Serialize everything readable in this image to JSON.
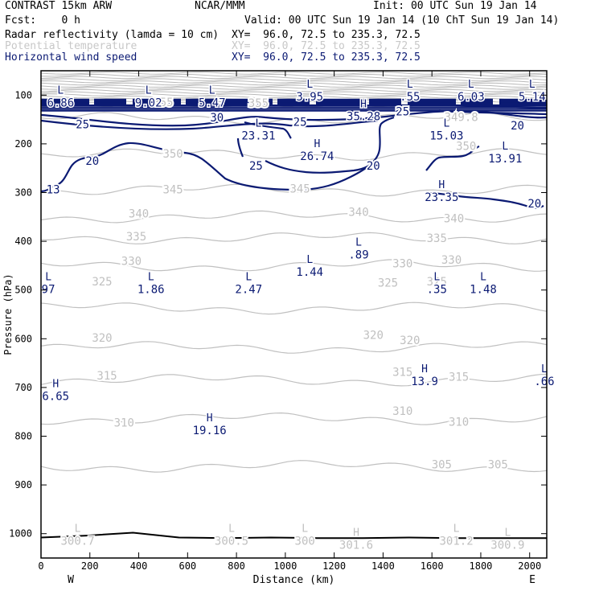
{
  "header": {
    "model": "CONTRAST 15km ARW",
    "org": "NCAR/MMM",
    "init": "Init: 00 UTC Sun 19 Jan 14",
    "fcst": "Fcst:    0 h",
    "valid": "Valid: 00 UTC Sun 19 Jan 14 (10 ChT Sun 19 Jan 14)"
  },
  "fields": [
    {
      "name": "Radar reflectivity (lamda = 10 cm)",
      "xy": "XY=  96.0, 72.5 to 235.3, 72.5"
    },
    {
      "name": "Potential temperature",
      "xy": "XY=  96.0, 72.5 to 235.3, 72.5"
    },
    {
      "name": "Horizontal wind speed",
      "xy": "XY=  96.0, 72.5 to 235.3, 72.5"
    }
  ],
  "colors": {
    "wind": "#0b1a73",
    "theta": "#c0c0c0",
    "terrain": "#000000",
    "axis": "#000000"
  },
  "chart_data": {
    "type": "cross-section contour",
    "xlabel": "Distance (km)",
    "ylabel": "Pressure (hPa)",
    "xlim": [
      0,
      2070
    ],
    "ylim": [
      1050,
      50
    ],
    "x_ticks": [
      0,
      200,
      400,
      600,
      800,
      1000,
      1200,
      1400,
      1600,
      1800,
      2000
    ],
    "y_ticks": [
      100,
      200,
      300,
      400,
      500,
      600,
      700,
      800,
      900,
      1000
    ],
    "endpoints": {
      "left": "W",
      "right": "E"
    },
    "theta_levels": [
      {
        "value": 305,
        "p": 862
      },
      {
        "value": 310,
        "p": 764
      },
      {
        "value": 315,
        "p": 685
      },
      {
        "value": 320,
        "p": 618
      },
      {
        "value": 325,
        "p": 537
      },
      {
        "value": 330,
        "p": 450
      },
      {
        "value": 335,
        "p": 393
      },
      {
        "value": 340,
        "p": 350
      },
      {
        "value": 345,
        "p": 295
      },
      {
        "value": 350,
        "p": 222
      },
      {
        "value": 355,
        "p": 148
      }
    ],
    "theta_labels": [
      {
        "text": "305",
        "x": 1640,
        "p": 858
      },
      {
        "text": "305",
        "x": 1870,
        "p": 858
      },
      {
        "text": "310",
        "x": 340,
        "p": 772
      },
      {
        "text": "310",
        "x": 1480,
        "p": 748
      },
      {
        "text": "310",
        "x": 1710,
        "p": 770
      },
      {
        "text": "315",
        "x": 270,
        "p": 675
      },
      {
        "text": "315",
        "x": 1480,
        "p": 668
      },
      {
        "text": "315",
        "x": 1710,
        "p": 678
      },
      {
        "text": "320",
        "x": 250,
        "p": 598
      },
      {
        "text": "320",
        "x": 1360,
        "p": 592
      },
      {
        "text": "320",
        "x": 1510,
        "p": 603
      },
      {
        "text": "325",
        "x": 250,
        "p": 482
      },
      {
        "text": "325",
        "x": 1420,
        "p": 485
      },
      {
        "text": "325",
        "x": 1620,
        "p": 482
      },
      {
        "text": "330",
        "x": 370,
        "p": 440
      },
      {
        "text": "330",
        "x": 1480,
        "p": 445
      },
      {
        "text": "330",
        "x": 1680,
        "p": 438
      },
      {
        "text": "335",
        "x": 390,
        "p": 390
      },
      {
        "text": "335",
        "x": 1620,
        "p": 393
      },
      {
        "text": "340",
        "x": 400,
        "p": 343
      },
      {
        "text": "340",
        "x": 1300,
        "p": 340
      },
      {
        "text": "340",
        "x": 1690,
        "p": 353
      },
      {
        "text": "345",
        "x": 540,
        "p": 293
      },
      {
        "text": "345",
        "x": 1060,
        "p": 292
      },
      {
        "text": "350",
        "x": 540,
        "p": 220
      },
      {
        "text": "350",
        "x": 1740,
        "p": 204
      },
      {
        "text": "355",
        "x": 500,
        "p": 114
      },
      {
        "text": "355",
        "x": 890,
        "p": 116
      },
      {
        "text": "349.8",
        "x": 1720,
        "p": 145
      }
    ],
    "wind_levels": [
      13,
      20,
      25,
      30
    ],
    "wind_labels": [
      {
        "text": "13",
        "x": 50,
        "p": 293
      },
      {
        "text": "20",
        "x": 210,
        "p": 235
      },
      {
        "text": "20",
        "x": 1360,
        "p": 245
      },
      {
        "text": "20",
        "x": 1950,
        "p": 162
      },
      {
        "text": "20",
        "x": 2020,
        "p": 322
      },
      {
        "text": "25",
        "x": 170,
        "p": 160
      },
      {
        "text": "25",
        "x": 880,
        "p": 245
      },
      {
        "text": "25",
        "x": 1060,
        "p": 155
      },
      {
        "text": "25",
        "x": 1480,
        "p": 133
      },
      {
        "text": "30",
        "x": 720,
        "p": 146
      }
    ],
    "extrema": [
      {
        "kind": "L",
        "value": "6.86",
        "x": 80,
        "p": 100,
        "field": "wind"
      },
      {
        "kind": "L",
        "value": "9.02",
        "x": 440,
        "p": 100,
        "field": "wind"
      },
      {
        "kind": "L",
        "value": "5.47",
        "x": 700,
        "p": 100,
        "field": "wind"
      },
      {
        "kind": "L",
        "value": "3.95",
        "x": 1100,
        "p": 88,
        "field": "wind"
      },
      {
        "kind": "L",
        "value": ".55",
        "x": 1510,
        "p": 88,
        "field": "wind"
      },
      {
        "kind": "L",
        "value": "6.03",
        "x": 1760,
        "p": 88,
        "field": "wind"
      },
      {
        "kind": "L",
        "value": "5.14",
        "x": 2010,
        "p": 88,
        "field": "wind"
      },
      {
        "kind": "H",
        "value": "35.28",
        "x": 1320,
        "p": 128,
        "field": "wind"
      },
      {
        "kind": "L",
        "value": "23.31",
        "x": 890,
        "p": 168,
        "field": "wind"
      },
      {
        "kind": "L",
        "value": "15.03",
        "x": 1660,
        "p": 168,
        "field": "wind"
      },
      {
        "kind": "H",
        "value": "26.74",
        "x": 1130,
        "p": 210,
        "field": "wind"
      },
      {
        "kind": "L",
        "value": "13.91",
        "x": 1900,
        "p": 215,
        "field": "wind"
      },
      {
        "kind": "H",
        "value": "23.35",
        "x": 1640,
        "p": 294,
        "field": "wind"
      },
      {
        "kind": "L",
        "value": "1.44",
        "x": 1100,
        "p": 448,
        "field": "wind"
      },
      {
        "kind": "L",
        "value": ".89",
        "x": 1300,
        "p": 412,
        "field": "wind"
      },
      {
        "kind": "L",
        "value": "97",
        "x": 30,
        "p": 483,
        "field": "wind"
      },
      {
        "kind": "L",
        "value": "1.86",
        "x": 450,
        "p": 483,
        "field": "wind"
      },
      {
        "kind": "L",
        "value": "2.47",
        "x": 850,
        "p": 483,
        "field": "wind"
      },
      {
        "kind": "L",
        "value": ".35",
        "x": 1620,
        "p": 483,
        "field": "wind"
      },
      {
        "kind": "L",
        "value": "1.48",
        "x": 1810,
        "p": 483,
        "field": "wind"
      },
      {
        "kind": "H",
        "value": "13.9",
        "x": 1570,
        "p": 672,
        "field": "wind"
      },
      {
        "kind": "L",
        "value": ".66",
        "x": 2060,
        "p": 672,
        "field": "wind"
      },
      {
        "kind": "H",
        "value": "6.65",
        "x": 60,
        "p": 703,
        "field": "wind"
      },
      {
        "kind": "H",
        "value": "19.16",
        "x": 690,
        "p": 773,
        "field": "wind"
      },
      {
        "kind": "L",
        "value": "300.7",
        "x": 150,
        "p": 1000,
        "field": "theta"
      },
      {
        "kind": "L",
        "value": "300.5",
        "x": 780,
        "p": 1000,
        "field": "theta"
      },
      {
        "kind": "L",
        "value": "300",
        "x": 1080,
        "p": 1000,
        "field": "theta"
      },
      {
        "kind": "H",
        "value": "301.6",
        "x": 1290,
        "p": 1008,
        "field": "theta"
      },
      {
        "kind": "L",
        "value": "301.2",
        "x": 1700,
        "p": 1000,
        "field": "theta"
      },
      {
        "kind": "L",
        "value": "300.9",
        "x": 1910,
        "p": 1008,
        "field": "theta"
      }
    ],
    "jet_core_p": [
      90,
      132
    ],
    "surface_p": [
      1008,
      1004,
      998,
      1008,
      1009,
      1008,
      1009,
      1009,
      1008,
      1009,
      1009,
      1009
    ]
  }
}
